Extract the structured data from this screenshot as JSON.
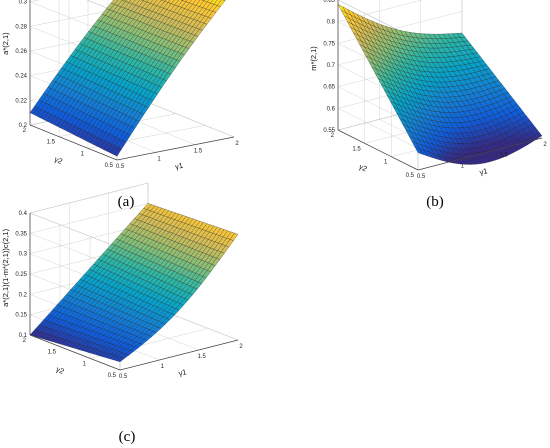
{
  "chart_data": [
    {
      "type": "surface",
      "panel_label": "(a)",
      "zlabel": "a*(2,1)",
      "x_var": "γ1",
      "y_var": "γ2",
      "x_range": [
        0.5,
        2
      ],
      "y_range": [
        0.5,
        2
      ],
      "x_ticks": [
        "0.5",
        "1",
        "1.5",
        "2"
      ],
      "y_ticks": [
        "0.5",
        "1",
        "1.5",
        "2"
      ],
      "z_ticks": [
        "0.2",
        "0.22",
        "0.24",
        "0.26",
        "0.28",
        "0.3",
        "0.32"
      ],
      "zlim": [
        0.2,
        0.32
      ],
      "grid": true,
      "colormap": "parula",
      "surface_corners": {
        "g1_0.5_g2_0.5": 0.203,
        "g1_2_g2_0.5": 0.32,
        "g1_0.5_g2_2": 0.21,
        "g1_2_g2_2": 0.315
      }
    },
    {
      "type": "surface",
      "panel_label": "(b)",
      "zlabel": "m*(2,1)",
      "x_var": "γ1",
      "y_var": "γ2",
      "x_range": [
        0.5,
        2
      ],
      "y_range": [
        0.5,
        2
      ],
      "x_ticks": [
        "0.5",
        "1",
        "1.5",
        "2"
      ],
      "y_ticks": [
        "0.5",
        "1",
        "1.5",
        "2"
      ],
      "z_ticks": [
        "0.55",
        "0.6",
        "0.65",
        "0.7",
        "0.75",
        "0.8",
        "0.85"
      ],
      "zlim": [
        0.55,
        0.85
      ],
      "grid": true,
      "colormap": "parula",
      "surface_corners": {
        "g1_0.5_g2_0.5": 0.59,
        "g1_2_g2_0.5": 0.555,
        "g1_0.5_g2_2": 0.84,
        "g1_2_g2_2": 0.7
      }
    },
    {
      "type": "surface",
      "panel_label": "(c)",
      "zlabel": "a*(2,1)(1-m*(2,1))c(2,1)",
      "x_var": "γ1",
      "y_var": "γ2",
      "x_range": [
        0.5,
        2
      ],
      "y_range": [
        0.5,
        2
      ],
      "x_ticks": [
        "0.5",
        "1",
        "1.5",
        "2"
      ],
      "y_ticks": [
        "0.5",
        "1",
        "1.5",
        "2"
      ],
      "z_ticks": [
        "0.1",
        "0.15",
        "0.2",
        "0.25",
        "0.3",
        "0.35",
        "0.4"
      ],
      "zlim": [
        0.1,
        0.4
      ],
      "grid": true,
      "colormap": "parula",
      "surface_corners": {
        "g1_0.5_g2_0.5": 0.12,
        "g1_2_g2_0.5": 0.36,
        "g1_0.5_g2_2": 0.1,
        "g1_2_g2_2": 0.35
      }
    }
  ],
  "colors": {
    "colormap_stops": [
      "#352a87",
      "#0f5cdd",
      "#1481d6",
      "#06a4ca",
      "#2eb7a4",
      "#87bf77",
      "#d1bb59",
      "#fec832",
      "#f9fb0e"
    ],
    "mesh_line": "#1a1a1a",
    "box_line": "#c8c8c8",
    "axis_line": "#444444"
  }
}
